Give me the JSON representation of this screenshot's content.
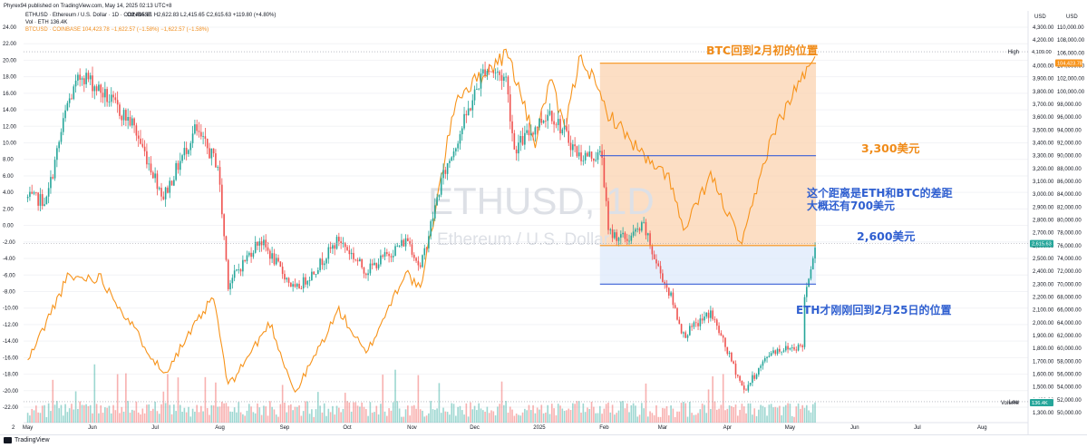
{
  "header": {
    "published": "Phyrex94 published on TradingView.com, May 14, 2025 02:13 UTC+8",
    "symbol_line": "ETHUSD · Ethereum / U.S. Dollar · 1D · COINBASE",
    "ohlc": "O2,495.61 H2,622.83 L2,415.65 C2,615.63 +119.80 (+4.80%)",
    "volume_line": "Vol · ETH  136.4K",
    "btc_line": "BTCUSD · COINBASE  104,423.78  −1,622.57 (−1.58%)  −1,622.57 (−1.58%)"
  },
  "colors": {
    "up": "#26a69a",
    "down": "#ef5350",
    "btc_line": "#f7931a",
    "orange_zone": "#fbd3b0",
    "blue_zone": "#dbe8fb",
    "blue_line": "#3a61d6",
    "orange_text": "#f08c1a",
    "blue_text": "#2f5fd0"
  },
  "watermark": {
    "symbol": "ETHUSD, 1D",
    "name": "Ethereum / U.S. Dollar"
  },
  "annotations": {
    "btc_back": "BTC回到2月初的位置",
    "level_3300": "3,300美元",
    "gap_line1": "这个距离是ETH和BTC的差距",
    "gap_line2": "大概还有700美元",
    "level_2600": "2,600美元",
    "eth_back": "ETH才刚刚回到2月25日的位置"
  },
  "badges": {
    "high_label": "High",
    "high_value": "4,109.00",
    "btc_last": "104,423.78",
    "eth_last": "2,615.63",
    "low_label": "Low",
    "low_value": "1,385.28",
    "volume_label": "Volume",
    "volume_value": "136.4K"
  },
  "axis_left_ticks": [
    "24.00",
    "22.00",
    "20.00",
    "18.00",
    "16.00",
    "14.00",
    "12.00",
    "10.00",
    "8.00",
    "6.00",
    "4.00",
    "2.00",
    "0.00",
    "-2.00",
    "-4.00",
    "-6.00",
    "-8.00",
    "-10.00",
    "-12.00",
    "-14.00",
    "-16.00",
    "-18.00",
    "-20.00",
    "-22.00"
  ],
  "axis_usd_label": "USD",
  "axis_eth_ticks": [
    "4,300.00",
    "4,200.00",
    "4,100.00",
    "4,000.00",
    "3,900.00",
    "3,800.00",
    "3,700.00",
    "3,600.00",
    "3,500.00",
    "3,400.00",
    "3,300.00",
    "3,200.00",
    "3,100.00",
    "3,000.00",
    "2,900.00",
    "2,800.00",
    "2,700.00",
    "2,600.00",
    "2,500.00",
    "2,400.00",
    "2,300.00",
    "2,200.00",
    "2,100.00",
    "2,000.00",
    "1,900.00",
    "1,800.00",
    "1,700.00",
    "1,600.00",
    "1,500.00",
    "1,400.00",
    "1,300.00"
  ],
  "axis_btc_ticks": [
    "110,000.00",
    "108,000.00",
    "106,000.00",
    "104,000.00",
    "102,000.00",
    "100,000.00",
    "98,000.00",
    "96,000.00",
    "94,000.00",
    "92,000.00",
    "90,000.00",
    "88,000.00",
    "86,000.00",
    "84,000.00",
    "82,000.00",
    "80,000.00",
    "78,000.00",
    "76,000.00",
    "74,000.00",
    "72,000.00",
    "70,000.00",
    "68,000.00",
    "66,000.00",
    "64,000.00",
    "62,000.00",
    "60,000.00",
    "58,000.00",
    "56,000.00",
    "54,000.00",
    "52,000.00",
    "50,000.00"
  ],
  "time_axis": {
    "prefix": "2",
    "labels": [
      "May",
      "Jun",
      "Jul",
      "Aug",
      "Sep",
      "Oct",
      "Nov",
      "Dec",
      "2025",
      "Feb",
      "Mar",
      "Apr",
      "May",
      "Jun",
      "Jul",
      "Aug"
    ]
  },
  "footer": {
    "brand": "TradingView"
  },
  "chart_data": {
    "type": "candlestick",
    "timeframe": "1D",
    "series": [
      {
        "name": "ETHUSD",
        "kind": "candles",
        "axis": "eth"
      },
      {
        "name": "BTCUSD",
        "kind": "line",
        "axis": "btc"
      },
      {
        "name": "Vol · ETH",
        "kind": "volume_bars"
      }
    ],
    "eth_anchor_closes": [
      [
        "2024-05-01",
        2970
      ],
      [
        "2024-05-10",
        2950
      ],
      [
        "2024-05-20",
        3700
      ],
      [
        "2024-05-27",
        3940
      ],
      [
        "2024-06-05",
        3800
      ],
      [
        "2024-06-20",
        3550
      ],
      [
        "2024-07-05",
        2980
      ],
      [
        "2024-07-20",
        3500
      ],
      [
        "2024-07-31",
        3230
      ],
      [
        "2024-08-05",
        2300
      ],
      [
        "2024-08-20",
        2650
      ],
      [
        "2024-09-06",
        2250
      ],
      [
        "2024-09-15",
        2400
      ],
      [
        "2024-09-27",
        2650
      ],
      [
        "2024-10-10",
        2400
      ],
      [
        "2024-10-30",
        2650
      ],
      [
        "2024-11-05",
        2420
      ],
      [
        "2024-11-15",
        3100
      ],
      [
        "2024-12-06",
        3990
      ],
      [
        "2024-12-16",
        3900
      ],
      [
        "2024-12-20",
        3350
      ],
      [
        "2025-01-06",
        3650
      ],
      [
        "2025-01-20",
        3300
      ],
      [
        "2025-01-31",
        3300
      ],
      [
        "2025-02-03",
        2700
      ],
      [
        "2025-02-12",
        2650
      ],
      [
        "2025-02-20",
        2750
      ],
      [
        "2025-02-25",
        2500
      ],
      [
        "2025-03-05",
        2200
      ],
      [
        "2025-03-11",
        1900
      ],
      [
        "2025-03-24",
        2080
      ],
      [
        "2025-04-09",
        1470
      ],
      [
        "2025-04-22",
        1780
      ],
      [
        "2025-05-07",
        1820
      ],
      [
        "2025-05-08",
        2200
      ],
      [
        "2025-05-13",
        2615
      ]
    ],
    "btc_anchor_closes": [
      [
        "2024-05-01",
        58000
      ],
      [
        "2024-05-20",
        71000
      ],
      [
        "2024-06-05",
        71000
      ],
      [
        "2024-07-05",
        56000
      ],
      [
        "2024-07-29",
        68000
      ],
      [
        "2024-08-05",
        54000
      ],
      [
        "2024-08-25",
        64000
      ],
      [
        "2024-09-06",
        53000
      ],
      [
        "2024-09-27",
        66000
      ],
      [
        "2024-10-10",
        59000
      ],
      [
        "2024-10-29",
        72000
      ],
      [
        "2024-11-05",
        69000
      ],
      [
        "2024-11-22",
        99000
      ],
      [
        "2024-12-17",
        106000
      ],
      [
        "2024-12-30",
        92000
      ],
      [
        "2025-01-06",
        102000
      ],
      [
        "2025-01-13",
        94000
      ],
      [
        "2025-01-21",
        106000
      ],
      [
        "2025-02-02",
        97000
      ],
      [
        "2025-02-25",
        88000
      ],
      [
        "2025-03-04",
        87000
      ],
      [
        "2025-03-11",
        78000
      ],
      [
        "2025-03-24",
        87000
      ],
      [
        "2025-04-08",
        76000
      ],
      [
        "2025-04-22",
        93000
      ],
      [
        "2025-05-08",
        103000
      ],
      [
        "2025-05-13",
        104400
      ]
    ],
    "levels": {
      "btc_early_feb": 104400,
      "eth_3300": 3300,
      "eth_2600": 2600,
      "eth_feb25": 2300
    },
    "last": {
      "eth_close": 2615.63,
      "btc_close": 104423.78,
      "eth_high": 4109.0,
      "eth_low": 1385.28,
      "volume": "136.4K"
    }
  }
}
